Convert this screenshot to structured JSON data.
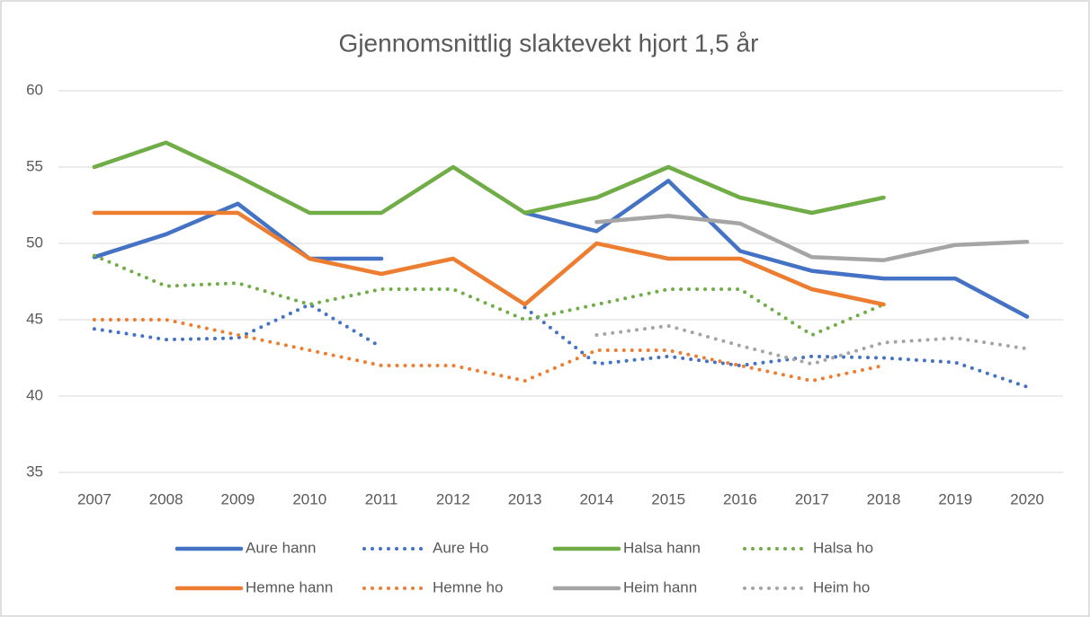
{
  "chart_data": {
    "type": "line",
    "title": "Gjennomsnittlig slaktevekt hjort 1,5 år",
    "categories": [
      "2007",
      "2008",
      "2009",
      "2010",
      "2011",
      "2012",
      "2013",
      "2014",
      "2015",
      "2016",
      "2017",
      "2018",
      "2019",
      "2020"
    ],
    "ylim": [
      35,
      60
    ],
    "yticks": [
      35,
      40,
      45,
      50,
      55,
      60
    ],
    "grid": true,
    "legend": "bottom",
    "series": [
      {
        "name": "Aure hann",
        "color": "#4472c4",
        "style": "solid",
        "values": [
          49.1,
          50.6,
          52.6,
          49,
          49,
          null,
          52,
          50.8,
          54.1,
          49.5,
          48.2,
          47.7,
          47.7,
          45.2
        ]
      },
      {
        "name": "Aure Ho",
        "color": "#4472c4",
        "style": "dotted",
        "values": [
          44.4,
          43.7,
          43.8,
          46,
          43.2,
          null,
          45.8,
          42.1,
          42.6,
          42.0,
          42.6,
          42.5,
          42.2,
          40.6
        ]
      },
      {
        "name": "Halsa hann",
        "color": "#70ad47",
        "style": "solid",
        "values": [
          55,
          56.6,
          54.4,
          52,
          52,
          55,
          52,
          53,
          55,
          53,
          52,
          53,
          null,
          null
        ]
      },
      {
        "name": "Halsa ho",
        "color": "#70ad47",
        "style": "dotted",
        "values": [
          49.2,
          47.2,
          47.4,
          46,
          47,
          47,
          45,
          46,
          47,
          47,
          44,
          46,
          null,
          null
        ]
      },
      {
        "name": "Hemne hann",
        "color": "#ed7d31",
        "style": "solid",
        "values": [
          52,
          52,
          52,
          49,
          48,
          49,
          46,
          50,
          49,
          49,
          47,
          46,
          null,
          null
        ]
      },
      {
        "name": "Hemne ho",
        "color": "#ed7d31",
        "style": "dotted",
        "values": [
          45,
          45,
          44,
          43,
          42,
          42,
          41,
          43,
          43,
          42,
          41,
          42,
          null,
          null
        ]
      },
      {
        "name": "Heim hann",
        "color": "#a5a5a5",
        "style": "solid",
        "values": [
          null,
          null,
          null,
          null,
          null,
          null,
          null,
          51.4,
          51.8,
          51.3,
          49.1,
          48.9,
          49.9,
          50.1
        ]
      },
      {
        "name": "Heim ho",
        "color": "#a5a5a5",
        "style": "dotted",
        "values": [
          null,
          null,
          null,
          null,
          null,
          null,
          null,
          44,
          44.6,
          43.3,
          42.1,
          43.5,
          43.8,
          43.1
        ]
      }
    ]
  }
}
